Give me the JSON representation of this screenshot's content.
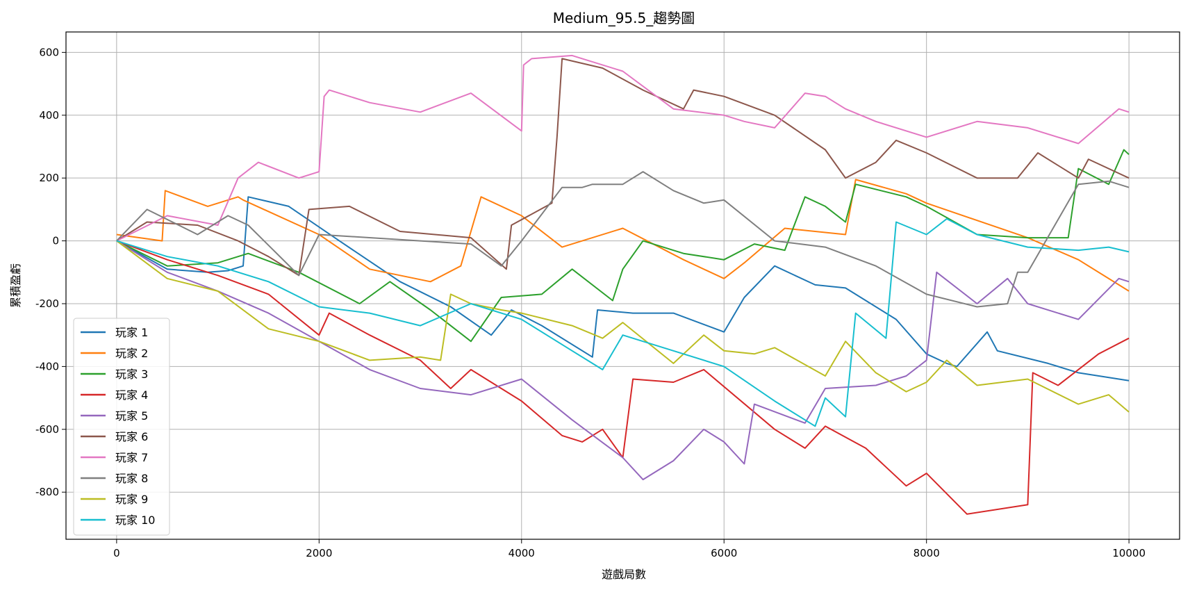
{
  "chart_data": {
    "type": "line",
    "title": "Medium_95.5_趨勢圖",
    "xlabel": "遊戲局數",
    "ylabel": "累積盈虧",
    "xlim": [
      -500,
      10500
    ],
    "ylim": [
      -950,
      665
    ],
    "xticks": [
      0,
      2000,
      4000,
      6000,
      8000,
      10000
    ],
    "yticks": [
      -800,
      -600,
      -400,
      -200,
      0,
      200,
      400,
      600
    ],
    "grid": true,
    "legend_position": "lower-left",
    "series": [
      {
        "name": "玩家 1",
        "color": "#1f77b4",
        "x": [
          0,
          500,
          900,
          1100,
          1250,
          1300,
          1700,
          2200,
          2800,
          3300,
          3700,
          3900,
          4200,
          4700,
          4750,
          5100,
          5500,
          6000,
          6200,
          6500,
          6900,
          7200,
          7700,
          8000,
          8200,
          8300,
          8600,
          8700,
          9200,
          9500,
          10000
        ],
        "y": [
          0,
          -90,
          -100,
          -95,
          -80,
          140,
          110,
          0,
          -130,
          -210,
          -300,
          -220,
          -270,
          -370,
          -220,
          -230,
          -230,
          -290,
          -180,
          -80,
          -140,
          -150,
          -250,
          -360,
          -390,
          -400,
          -290,
          -350,
          -390,
          -420,
          -445
        ]
      },
      {
        "name": "玩家 2",
        "color": "#ff7f0e",
        "x": [
          0,
          450,
          480,
          900,
          1200,
          1250,
          2000,
          2500,
          3100,
          3400,
          3600,
          4000,
          4400,
          5000,
          5600,
          6000,
          6200,
          6600,
          7200,
          7300,
          7800,
          8000,
          9000,
          9500,
          10000
        ],
        "y": [
          20,
          0,
          160,
          110,
          140,
          130,
          20,
          -90,
          -130,
          -80,
          140,
          80,
          -20,
          40,
          -60,
          -120,
          -70,
          40,
          20,
          195,
          150,
          120,
          10,
          -60,
          -160
        ]
      },
      {
        "name": "玩家 3",
        "color": "#2ca02c",
        "x": [
          0,
          500,
          1000,
          1300,
          1800,
          2400,
          2700,
          3100,
          3500,
          3800,
          4200,
          4500,
          4900,
          5000,
          5200,
          5600,
          6000,
          6300,
          6600,
          6800,
          7000,
          7200,
          7300,
          7800,
          8000,
          8500,
          9000,
          9400,
          9500,
          9800,
          9950,
          10000
        ],
        "y": [
          0,
          -80,
          -70,
          -40,
          -100,
          -200,
          -130,
          -220,
          -320,
          -180,
          -170,
          -90,
          -190,
          -90,
          0,
          -40,
          -60,
          -10,
          -30,
          140,
          110,
          60,
          180,
          140,
          110,
          20,
          10,
          10,
          230,
          180,
          290,
          275
        ]
      },
      {
        "name": "玩家 4",
        "color": "#d62728",
        "x": [
          0,
          500,
          1000,
          1500,
          2000,
          2100,
          2500,
          3000,
          3300,
          3500,
          4000,
          4400,
          4600,
          4800,
          5000,
          5100,
          5500,
          5800,
          6500,
          6800,
          7000,
          7400,
          7800,
          8000,
          8400,
          9000,
          9050,
          9300,
          9700,
          10000
        ],
        "y": [
          0,
          -60,
          -110,
          -170,
          -300,
          -230,
          -300,
          -380,
          -470,
          -410,
          -510,
          -620,
          -640,
          -600,
          -690,
          -440,
          -450,
          -410,
          -600,
          -660,
          -590,
          -660,
          -780,
          -740,
          -870,
          -840,
          -420,
          -460,
          -360,
          -310
        ]
      },
      {
        "name": "玩家 5",
        "color": "#9467bd",
        "x": [
          0,
          500,
          1000,
          1500,
          2000,
          2500,
          3000,
          3500,
          4000,
          4500,
          5000,
          5200,
          5500,
          5800,
          6000,
          6200,
          6300,
          6800,
          7000,
          7500,
          7800,
          8000,
          8100,
          8500,
          8800,
          9000,
          9500,
          9900,
          10000
        ],
        "y": [
          0,
          -100,
          -160,
          -230,
          -320,
          -410,
          -470,
          -490,
          -440,
          -570,
          -690,
          -760,
          -700,
          -600,
          -640,
          -710,
          -520,
          -580,
          -470,
          -460,
          -430,
          -380,
          -100,
          -200,
          -120,
          -200,
          -250,
          -120,
          -130
        ]
      },
      {
        "name": "玩家 6",
        "color": "#8c564b",
        "x": [
          0,
          300,
          800,
          1200,
          1500,
          1800,
          1900,
          2300,
          2800,
          3500,
          3850,
          3900,
          4300,
          4350,
          4400,
          4800,
          5200,
          5600,
          5700,
          6000,
          6500,
          7000,
          7200,
          7500,
          7700,
          8000,
          8500,
          8900,
          9100,
          9500,
          9600,
          10000
        ],
        "y": [
          0,
          60,
          50,
          0,
          -50,
          -110,
          100,
          110,
          30,
          10,
          -90,
          50,
          120,
          330,
          580,
          550,
          480,
          420,
          480,
          460,
          400,
          290,
          200,
          250,
          320,
          280,
          200,
          200,
          280,
          200,
          260,
          200
        ]
      },
      {
        "name": "玩家 7",
        "color": "#e377c2",
        "x": [
          0,
          500,
          1000,
          1200,
          1400,
          1800,
          2000,
          2050,
          2100,
          2500,
          3000,
          3500,
          4000,
          4020,
          4100,
          4500,
          5000,
          5500,
          6000,
          6200,
          6500,
          6800,
          7000,
          7200,
          7500,
          8000,
          8500,
          9000,
          9500,
          9900,
          10000
        ],
        "y": [
          0,
          80,
          50,
          200,
          250,
          200,
          220,
          460,
          480,
          440,
          410,
          470,
          350,
          560,
          580,
          590,
          540,
          420,
          400,
          380,
          360,
          470,
          460,
          420,
          380,
          330,
          380,
          360,
          310,
          420,
          410
        ]
      },
      {
        "name": "玩家 8",
        "color": "#7f7f7f",
        "x": [
          0,
          300,
          800,
          1100,
          1300,
          1800,
          2000,
          3000,
          3500,
          3800,
          4000,
          4400,
          4600,
          4700,
          5000,
          5200,
          5500,
          5800,
          6000,
          6500,
          7000,
          7500,
          8000,
          8500,
          8800,
          8900,
          9000,
          9500,
          9800,
          10000
        ],
        "y": [
          0,
          100,
          20,
          80,
          50,
          -110,
          20,
          0,
          -10,
          -80,
          0,
          170,
          170,
          180,
          180,
          220,
          160,
          120,
          130,
          0,
          -20,
          -80,
          -170,
          -210,
          -200,
          -100,
          -100,
          180,
          190,
          170
        ]
      },
      {
        "name": "玩家 9",
        "color": "#bcbd22",
        "x": [
          0,
          500,
          1000,
          1500,
          2000,
          2500,
          3000,
          3200,
          3300,
          3500,
          3800,
          4000,
          4500,
          4800,
          5000,
          5500,
          5800,
          6000,
          6300,
          6500,
          7000,
          7200,
          7500,
          7800,
          8000,
          8200,
          8500,
          9000,
          9500,
          9800,
          10000
        ],
        "y": [
          0,
          -120,
          -160,
          -280,
          -320,
          -380,
          -370,
          -380,
          -170,
          -200,
          -220,
          -230,
          -270,
          -310,
          -260,
          -390,
          -300,
          -350,
          -360,
          -340,
          -430,
          -320,
          -420,
          -480,
          -450,
          -380,
          -460,
          -440,
          -520,
          -490,
          -545
        ]
      },
      {
        "name": "玩家 10",
        "color": "#17becf",
        "x": [
          0,
          500,
          1000,
          1500,
          2000,
          2500,
          3000,
          3500,
          4000,
          4500,
          4800,
          5000,
          5500,
          6000,
          6500,
          6900,
          7000,
          7200,
          7300,
          7600,
          7700,
          8000,
          8200,
          8500,
          9000,
          9500,
          9800,
          10000
        ],
        "y": [
          0,
          -50,
          -80,
          -130,
          -210,
          -230,
          -270,
          -200,
          -250,
          -350,
          -410,
          -300,
          -350,
          -400,
          -510,
          -590,
          -500,
          -560,
          -230,
          -310,
          60,
          20,
          70,
          20,
          -20,
          -30,
          -20,
          -35
        ]
      }
    ]
  }
}
